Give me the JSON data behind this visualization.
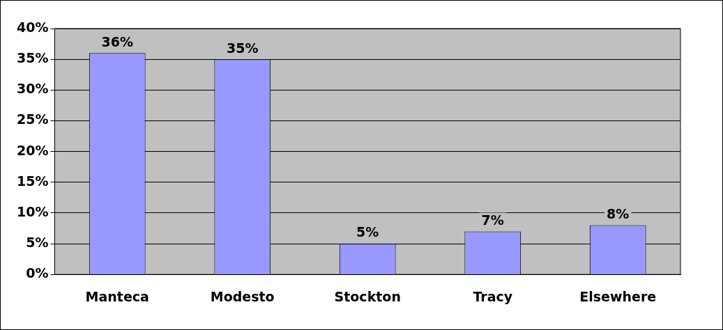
{
  "chart_data": {
    "type": "bar",
    "categories": [
      "Manteca",
      "Modesto",
      "Stockton",
      "Tracy",
      "Elsewhere"
    ],
    "values": [
      36,
      35,
      5,
      7,
      8
    ],
    "value_labels": [
      "36%",
      "35%",
      "5%",
      "7%",
      "8%"
    ],
    "color": "#9999ff",
    "ylim": [
      0,
      40
    ],
    "yticks": [
      {
        "value": 0,
        "label": "0%"
      },
      {
        "value": 5,
        "label": "5%"
      },
      {
        "value": 10,
        "label": "10%"
      },
      {
        "value": 15,
        "label": "15%"
      },
      {
        "value": 20,
        "label": "20%"
      },
      {
        "value": 25,
        "label": "25%"
      },
      {
        "value": 30,
        "label": "30%"
      },
      {
        "value": 35,
        "label": "35%"
      },
      {
        "value": 40,
        "label": "40%"
      }
    ],
    "grid": "y"
  }
}
